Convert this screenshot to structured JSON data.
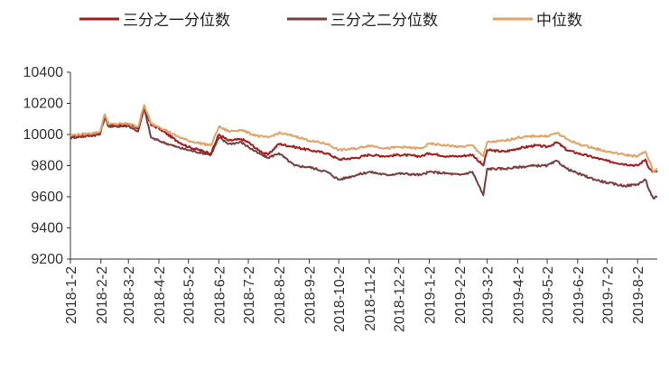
{
  "chart_data": {
    "type": "line",
    "title": "",
    "xlabel": "",
    "ylabel": "",
    "ylim": [
      9200,
      10400
    ],
    "yticks": [
      9200,
      9400,
      9600,
      9800,
      10000,
      10200,
      10400
    ],
    "x_tick_labels": [
      "2018-1-2",
      "2018-2-2",
      "2018-3-2",
      "2018-4-2",
      "2018-5-2",
      "2018-6-2",
      "2018-7-2",
      "2018-8-2",
      "2018-9-2",
      "2018-10-2",
      "2018-11-2",
      "2018-12-2",
      "2019-1-2",
      "2019-2-2",
      "2019-3-2",
      "2019-4-2",
      "2019-5-2",
      "2019-6-2",
      "2019-7-2",
      "2019-8-2"
    ],
    "x_range": [
      "2018-01-02",
      "2019-08-22"
    ],
    "grid": false,
    "legend_position": "top",
    "series": [
      {
        "name": "三分之一分位数",
        "color": "#a61c1c",
        "points": [
          [
            "2018-01-02",
            9990
          ],
          [
            "2018-01-20",
            10000
          ],
          [
            "2018-02-01",
            10010
          ],
          [
            "2018-02-06",
            10120
          ],
          [
            "2018-02-10",
            10060
          ],
          [
            "2018-03-02",
            10065
          ],
          [
            "2018-03-12",
            10040
          ],
          [
            "2018-03-18",
            10180
          ],
          [
            "2018-03-25",
            10060
          ],
          [
            "2018-04-02",
            10040
          ],
          [
            "2018-04-20",
            9960
          ],
          [
            "2018-05-02",
            9920
          ],
          [
            "2018-05-25",
            9880
          ],
          [
            "2018-06-02",
            10000
          ],
          [
            "2018-06-12",
            9960
          ],
          [
            "2018-06-25",
            9970
          ],
          [
            "2018-07-02",
            9950
          ],
          [
            "2018-07-12",
            9900
          ],
          [
            "2018-07-22",
            9870
          ],
          [
            "2018-08-02",
            9940
          ],
          [
            "2018-08-18",
            9920
          ],
          [
            "2018-09-02",
            9900
          ],
          [
            "2018-09-20",
            9880
          ],
          [
            "2018-10-02",
            9840
          ],
          [
            "2018-10-20",
            9850
          ],
          [
            "2018-11-02",
            9870
          ],
          [
            "2018-11-20",
            9860
          ],
          [
            "2018-12-02",
            9870
          ],
          [
            "2018-12-25",
            9860
          ],
          [
            "2019-01-02",
            9880
          ],
          [
            "2019-01-20",
            9860
          ],
          [
            "2019-02-02",
            9860
          ],
          [
            "2019-02-15",
            9870
          ],
          [
            "2019-02-26",
            9800
          ],
          [
            "2019-03-02",
            9900
          ],
          [
            "2019-03-20",
            9890
          ],
          [
            "2019-04-02",
            9910
          ],
          [
            "2019-04-20",
            9930
          ],
          [
            "2019-05-02",
            9920
          ],
          [
            "2019-05-12",
            9950
          ],
          [
            "2019-05-22",
            9900
          ],
          [
            "2019-06-02",
            9880
          ],
          [
            "2019-06-20",
            9850
          ],
          [
            "2019-07-02",
            9830
          ],
          [
            "2019-07-20",
            9810
          ],
          [
            "2019-08-02",
            9800
          ],
          [
            "2019-08-10",
            9840
          ],
          [
            "2019-08-14",
            9780
          ],
          [
            "2019-08-18",
            9760
          ],
          [
            "2019-08-22",
            9760
          ]
        ]
      },
      {
        "name": "三分之二分位数",
        "color": "#7a3e3e",
        "points": [
          [
            "2018-01-02",
            9980
          ],
          [
            "2018-01-20",
            9990
          ],
          [
            "2018-02-01",
            10000
          ],
          [
            "2018-02-06",
            10110
          ],
          [
            "2018-02-10",
            10050
          ],
          [
            "2018-03-02",
            10055
          ],
          [
            "2018-03-12",
            10020
          ],
          [
            "2018-03-18",
            10170
          ],
          [
            "2018-03-25",
            9980
          ],
          [
            "2018-04-02",
            9960
          ],
          [
            "2018-04-20",
            9920
          ],
          [
            "2018-05-02",
            9900
          ],
          [
            "2018-05-25",
            9870
          ],
          [
            "2018-06-02",
            9980
          ],
          [
            "2018-06-12",
            9940
          ],
          [
            "2018-06-25",
            9950
          ],
          [
            "2018-07-02",
            9920
          ],
          [
            "2018-07-12",
            9880
          ],
          [
            "2018-07-22",
            9850
          ],
          [
            "2018-08-02",
            9880
          ],
          [
            "2018-08-18",
            9800
          ],
          [
            "2018-09-02",
            9790
          ],
          [
            "2018-09-20",
            9760
          ],
          [
            "2018-10-02",
            9710
          ],
          [
            "2018-10-20",
            9740
          ],
          [
            "2018-11-02",
            9760
          ],
          [
            "2018-11-20",
            9740
          ],
          [
            "2018-12-02",
            9750
          ],
          [
            "2018-12-25",
            9740
          ],
          [
            "2019-01-02",
            9760
          ],
          [
            "2019-01-20",
            9750
          ],
          [
            "2019-02-02",
            9740
          ],
          [
            "2019-02-15",
            9760
          ],
          [
            "2019-02-26",
            9610
          ],
          [
            "2019-03-02",
            9780
          ],
          [
            "2019-03-20",
            9780
          ],
          [
            "2019-04-02",
            9790
          ],
          [
            "2019-04-20",
            9800
          ],
          [
            "2019-05-02",
            9800
          ],
          [
            "2019-05-12",
            9830
          ],
          [
            "2019-05-22",
            9780
          ],
          [
            "2019-06-02",
            9750
          ],
          [
            "2019-06-20",
            9710
          ],
          [
            "2019-07-02",
            9690
          ],
          [
            "2019-07-20",
            9670
          ],
          [
            "2019-08-02",
            9680
          ],
          [
            "2019-08-10",
            9710
          ],
          [
            "2019-08-14",
            9640
          ],
          [
            "2019-08-18",
            9590
          ],
          [
            "2019-08-22",
            9600
          ]
        ]
      },
      {
        "name": "中位数",
        "color": "#e0a466",
        "points": [
          [
            "2018-01-02",
            9995
          ],
          [
            "2018-01-20",
            10005
          ],
          [
            "2018-02-01",
            10015
          ],
          [
            "2018-02-06",
            10130
          ],
          [
            "2018-02-10",
            10065
          ],
          [
            "2018-03-02",
            10070
          ],
          [
            "2018-03-12",
            10050
          ],
          [
            "2018-03-18",
            10190
          ],
          [
            "2018-03-25",
            10070
          ],
          [
            "2018-04-02",
            10050
          ],
          [
            "2018-04-20",
            9990
          ],
          [
            "2018-05-02",
            9960
          ],
          [
            "2018-05-25",
            9930
          ],
          [
            "2018-06-02",
            10050
          ],
          [
            "2018-06-12",
            10020
          ],
          [
            "2018-06-25",
            10030
          ],
          [
            "2018-07-02",
            10010
          ],
          [
            "2018-07-12",
            9990
          ],
          [
            "2018-07-22",
            9980
          ],
          [
            "2018-08-02",
            10010
          ],
          [
            "2018-08-18",
            9990
          ],
          [
            "2018-09-02",
            9960
          ],
          [
            "2018-09-20",
            9940
          ],
          [
            "2018-10-02",
            9900
          ],
          [
            "2018-10-20",
            9910
          ],
          [
            "2018-11-02",
            9930
          ],
          [
            "2018-11-20",
            9910
          ],
          [
            "2018-12-02",
            9920
          ],
          [
            "2018-12-25",
            9910
          ],
          [
            "2019-01-02",
            9940
          ],
          [
            "2019-01-20",
            9930
          ],
          [
            "2019-02-02",
            9920
          ],
          [
            "2019-02-15",
            9930
          ],
          [
            "2019-02-26",
            9860
          ],
          [
            "2019-03-02",
            9950
          ],
          [
            "2019-03-20",
            9960
          ],
          [
            "2019-04-02",
            9980
          ],
          [
            "2019-04-20",
            9990
          ],
          [
            "2019-05-02",
            9990
          ],
          [
            "2019-05-12",
            10010
          ],
          [
            "2019-05-22",
            9970
          ],
          [
            "2019-06-02",
            9940
          ],
          [
            "2019-06-20",
            9910
          ],
          [
            "2019-07-02",
            9890
          ],
          [
            "2019-07-20",
            9870
          ],
          [
            "2019-08-02",
            9860
          ],
          [
            "2019-08-10",
            9890
          ],
          [
            "2019-08-14",
            9830
          ],
          [
            "2019-08-18",
            9760
          ],
          [
            "2019-08-22",
            9780
          ]
        ]
      }
    ]
  }
}
